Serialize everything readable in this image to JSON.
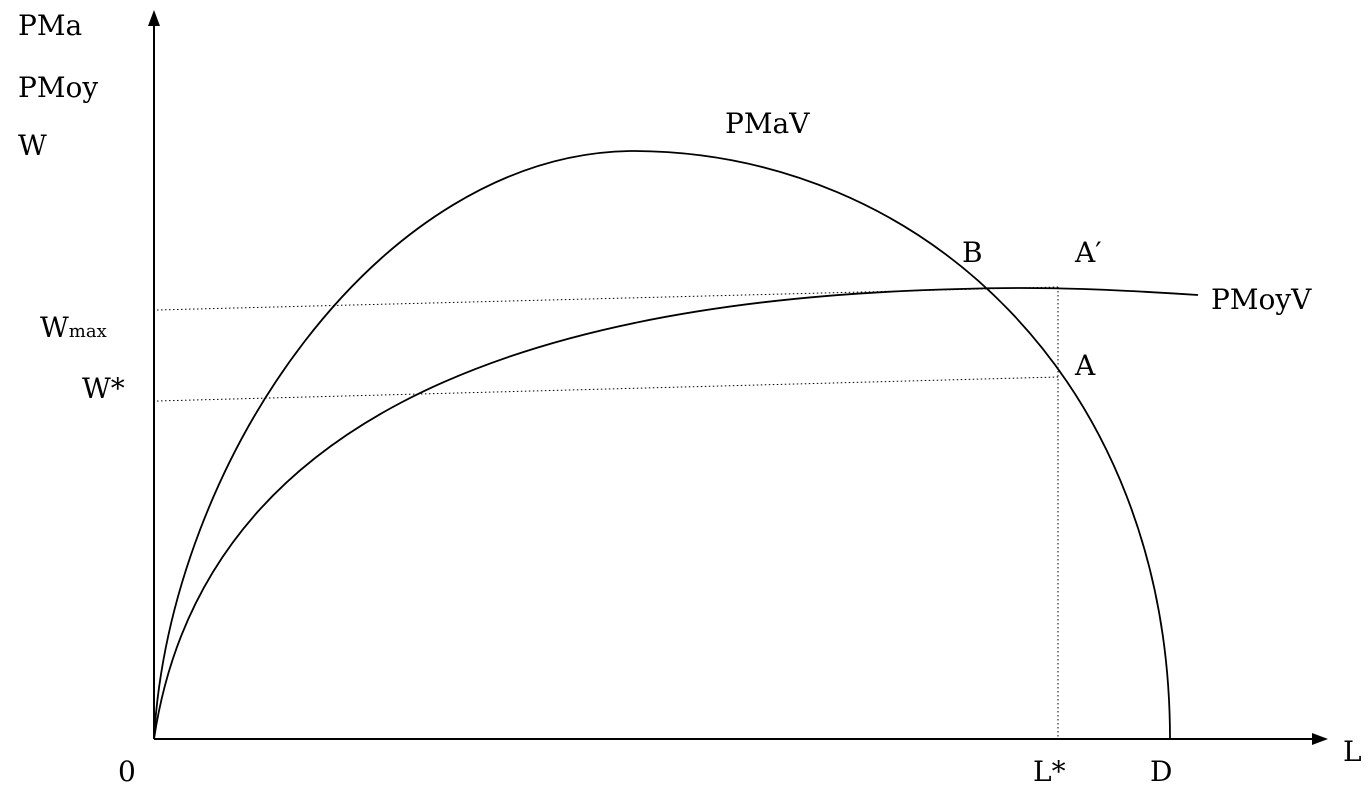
{
  "axis_labels": {
    "y_line_1": "PMa",
    "y_line_2": "PMoy",
    "y_line_3": "W",
    "x": "L",
    "origin": "0"
  },
  "y_ticks": {
    "wmax_main": "W",
    "wmax_sub": "max",
    "wstar": "W*"
  },
  "x_ticks": {
    "lstar": "L*",
    "d": "D"
  },
  "curves": {
    "marginal": "PMaV",
    "average": "PMoyV"
  },
  "points": {
    "b": "B",
    "a_prime": "A′",
    "a": "A"
  }
}
